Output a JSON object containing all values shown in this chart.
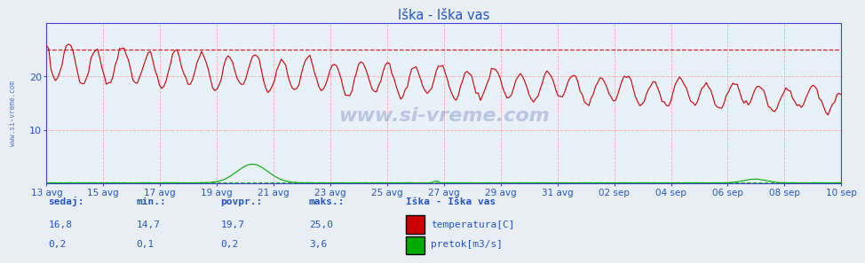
{
  "title": "Iška - Iška vas",
  "fig_bg_color": "#e8eef4",
  "plot_bg_color": "#e8f0f8",
  "axis_color": "#4444cc",
  "text_color": "#2255cc",
  "temp_color": "#cc0000",
  "flow_color": "#00aa00",
  "grid_color": "#ffaaaa",
  "ylim": [
    0,
    30
  ],
  "y_ticks": [
    10,
    20
  ],
  "temp_max_line": 25.0,
  "flow_max_line": 0.2,
  "x_labels": [
    "13 avg",
    "15 avg",
    "17 avg",
    "19 avg",
    "21 avg",
    "23 avg",
    "25 avg",
    "27 avg",
    "29 avg",
    "31 avg",
    "02 sep",
    "04 sep",
    "06 sep",
    "08 sep",
    "10 sep"
  ],
  "n_points": 360,
  "watermark": "www.si-vreme.com",
  "side_text": "www.si-vreme.com",
  "stats_headers": [
    "sedaj:",
    "min.:",
    "povpr.:",
    "maks.:"
  ],
  "stats_row1": [
    "16,8",
    "14,7",
    "19,7",
    "25,0"
  ],
  "stats_row2": [
    "0,2",
    "0,1",
    "0,2",
    "3,6"
  ],
  "legend_title": "Iška - Iška vas",
  "legend_items": [
    {
      "label": "temperatura[C]",
      "color": "#cc0000"
    },
    {
      "label": "pretok[m3/s]",
      "color": "#00aa00"
    }
  ]
}
